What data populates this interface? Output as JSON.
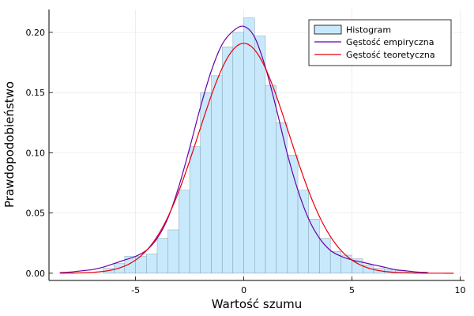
{
  "chart_data": {
    "type": "bar",
    "xlabel": "Wartość szumu",
    "ylabel": "Prawdopodobieństwo",
    "xlim": [
      -9,
      10.2
    ],
    "ylim": [
      -0.006,
      0.219
    ],
    "x_ticks": [
      -5,
      0,
      5,
      10
    ],
    "x_tick_labels": [
      "-5",
      "0",
      "5",
      "10"
    ],
    "y_ticks": [
      0,
      0.05,
      0.1,
      0.15,
      0.2
    ],
    "y_tick_labels": [
      "0.00",
      "0.05",
      "0.10",
      "0.15",
      "0.20"
    ],
    "grid": true,
    "legend_position": "top-right",
    "legend": [
      {
        "label": "Histogram",
        "kind": "bar"
      },
      {
        "label": "Gęstość empiryczna",
        "kind": "line"
      },
      {
        "label": "Gęstość teoretyczna",
        "kind": "line"
      }
    ],
    "histogram": {
      "bin_width": 0.5,
      "bin_starts": [
        -6.5,
        -6.0,
        -5.5,
        -5.0,
        -4.5,
        -4.0,
        -3.5,
        -3.0,
        -2.5,
        -2.0,
        -1.5,
        -1.0,
        -0.5,
        0.0,
        0.5,
        1.0,
        1.5,
        2.0,
        2.5,
        3.0,
        3.5,
        4.0,
        4.5,
        5.0,
        5.5,
        6.0,
        6.5,
        7.0,
        7.5,
        8.0
      ],
      "values": [
        0.004,
        0.008,
        0.014,
        0.014,
        0.016,
        0.029,
        0.036,
        0.069,
        0.105,
        0.15,
        0.164,
        0.188,
        0.2,
        0.212,
        0.197,
        0.156,
        0.125,
        0.098,
        0.069,
        0.045,
        0.029,
        0.018,
        0.015,
        0.012,
        0.007,
        0.004,
        0.003,
        0.002,
        0.001,
        0.001
      ]
    },
    "empirical_density": {
      "x": [
        -8.5,
        -8.0,
        -7.5,
        -7.0,
        -6.5,
        -6.0,
        -5.5,
        -5.0,
        -4.5,
        -4.0,
        -3.5,
        -3.0,
        -2.5,
        -2.0,
        -1.5,
        -1.0,
        -0.5,
        0.0,
        0.5,
        1.0,
        1.5,
        2.0,
        2.5,
        3.0,
        3.5,
        4.0,
        4.5,
        5.0,
        5.5,
        6.0,
        6.5,
        7.0,
        7.5,
        8.0,
        8.5
      ],
      "y": [
        0.0005,
        0.001,
        0.002,
        0.003,
        0.005,
        0.008,
        0.011,
        0.014,
        0.019,
        0.029,
        0.046,
        0.072,
        0.104,
        0.138,
        0.168,
        0.19,
        0.201,
        0.205,
        0.196,
        0.171,
        0.137,
        0.1,
        0.069,
        0.045,
        0.029,
        0.019,
        0.014,
        0.011,
        0.009,
        0.007,
        0.005,
        0.003,
        0.002,
        0.001,
        0.0005
      ]
    },
    "theoretical_density": {
      "distribution": "normal",
      "mean": 0,
      "sd": 2.09,
      "x_range": [
        -8.5,
        9.7
      ]
    },
    "colors": {
      "histogram_fill": "#c8e9fb",
      "histogram_edge": "#6f8ea0",
      "empirical": "#6a00a8",
      "theoretical": "#e8000b",
      "grid": "#ebebeb",
      "axis": "#000000"
    }
  }
}
